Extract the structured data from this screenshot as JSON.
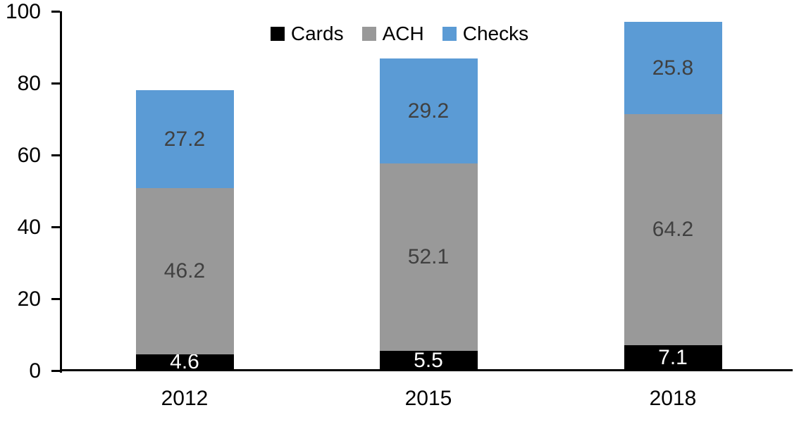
{
  "chart_data": {
    "type": "bar",
    "stacked": true,
    "title": "",
    "xlabel": "",
    "ylabel": "",
    "categories": [
      "2012",
      "2015",
      "2018"
    ],
    "series": [
      {
        "name": "Cards",
        "color": "#000000",
        "label_color": "#ffffff",
        "values": [
          4.6,
          5.5,
          7.1
        ]
      },
      {
        "name": "ACH",
        "color": "#999999",
        "label_color": "#404040",
        "values": [
          46.2,
          52.1,
          64.2
        ]
      },
      {
        "name": "Checks",
        "color": "#5B9BD5",
        "label_color": "#404040",
        "values": [
          27.2,
          29.2,
          25.8
        ]
      }
    ],
    "yticks": [
      0,
      20,
      40,
      60,
      80,
      100
    ],
    "ylim": [
      0,
      100
    ],
    "grid": false,
    "legend_position": "top-center",
    "axis_color": "#000000",
    "data_labels_shown": true
  }
}
